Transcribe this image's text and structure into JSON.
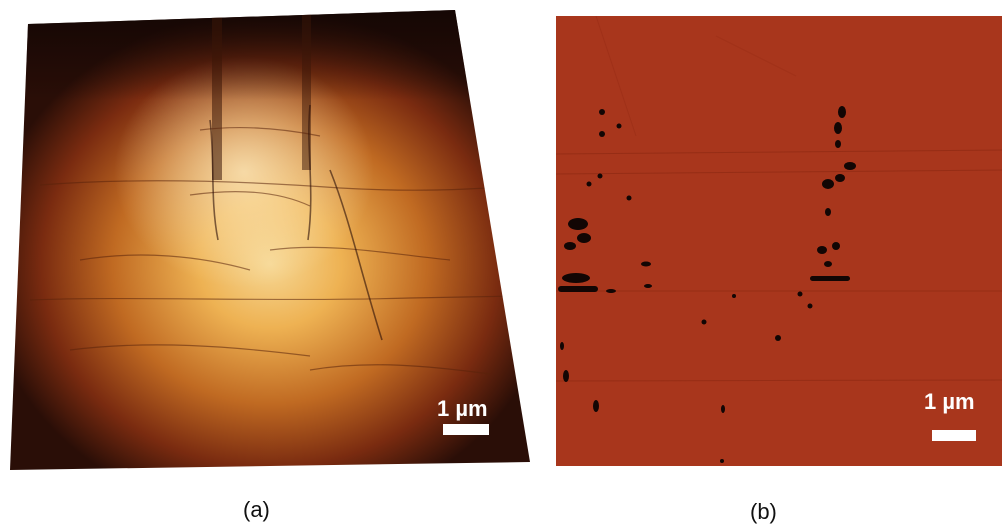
{
  "figure": {
    "panels": [
      {
        "id": "a",
        "caption": "(a)",
        "scale_bar_label": "1 µm",
        "type": "3d-afm-topography"
      },
      {
        "id": "b",
        "caption": "(b)",
        "scale_bar_label": "1 µm",
        "type": "afm-phase-map"
      }
    ],
    "colors": {
      "topography_dark": "#1c0b06",
      "topography_mid": "#9a3e14",
      "topography_bright": "#f3c46a",
      "phase_background": "#a8361c",
      "phase_features": "#120604",
      "scale_bar": "#ffffff"
    }
  }
}
